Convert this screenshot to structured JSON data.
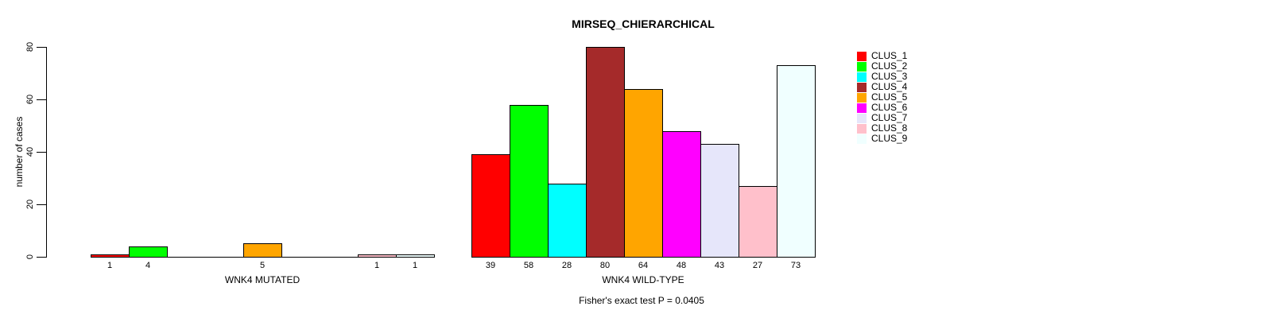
{
  "chart_data": {
    "type": "bar",
    "title": "MIRSEQ_CHIERARCHICAL",
    "ylabel": "number of cases",
    "xlabel": "",
    "ylim": [
      0,
      80
    ],
    "yticks": [
      0,
      20,
      40,
      60,
      80
    ],
    "grid": false,
    "legend_position": "right",
    "annotation": "Fisher's exact test P = 0.0405",
    "clusters": [
      "CLUS_1",
      "CLUS_2",
      "CLUS_3",
      "CLUS_4",
      "CLUS_5",
      "CLUS_6",
      "CLUS_7",
      "CLUS_8",
      "CLUS_9"
    ],
    "colors": [
      "#FF0000",
      "#00FF00",
      "#00FFFF",
      "#A52A2A",
      "#FFA500",
      "#FF00FF",
      "#E6E6FA",
      "#FFC0CB",
      "#F0FFFF"
    ],
    "bar_border_color": "#000000",
    "groups": [
      {
        "label": "WNK4 MUTATED",
        "values": [
          1,
          4,
          0,
          0,
          5,
          0,
          0,
          1,
          1
        ]
      },
      {
        "label": "WNK4 WILD-TYPE",
        "values": [
          39,
          58,
          28,
          80,
          64,
          48,
          43,
          27,
          73
        ]
      }
    ]
  }
}
